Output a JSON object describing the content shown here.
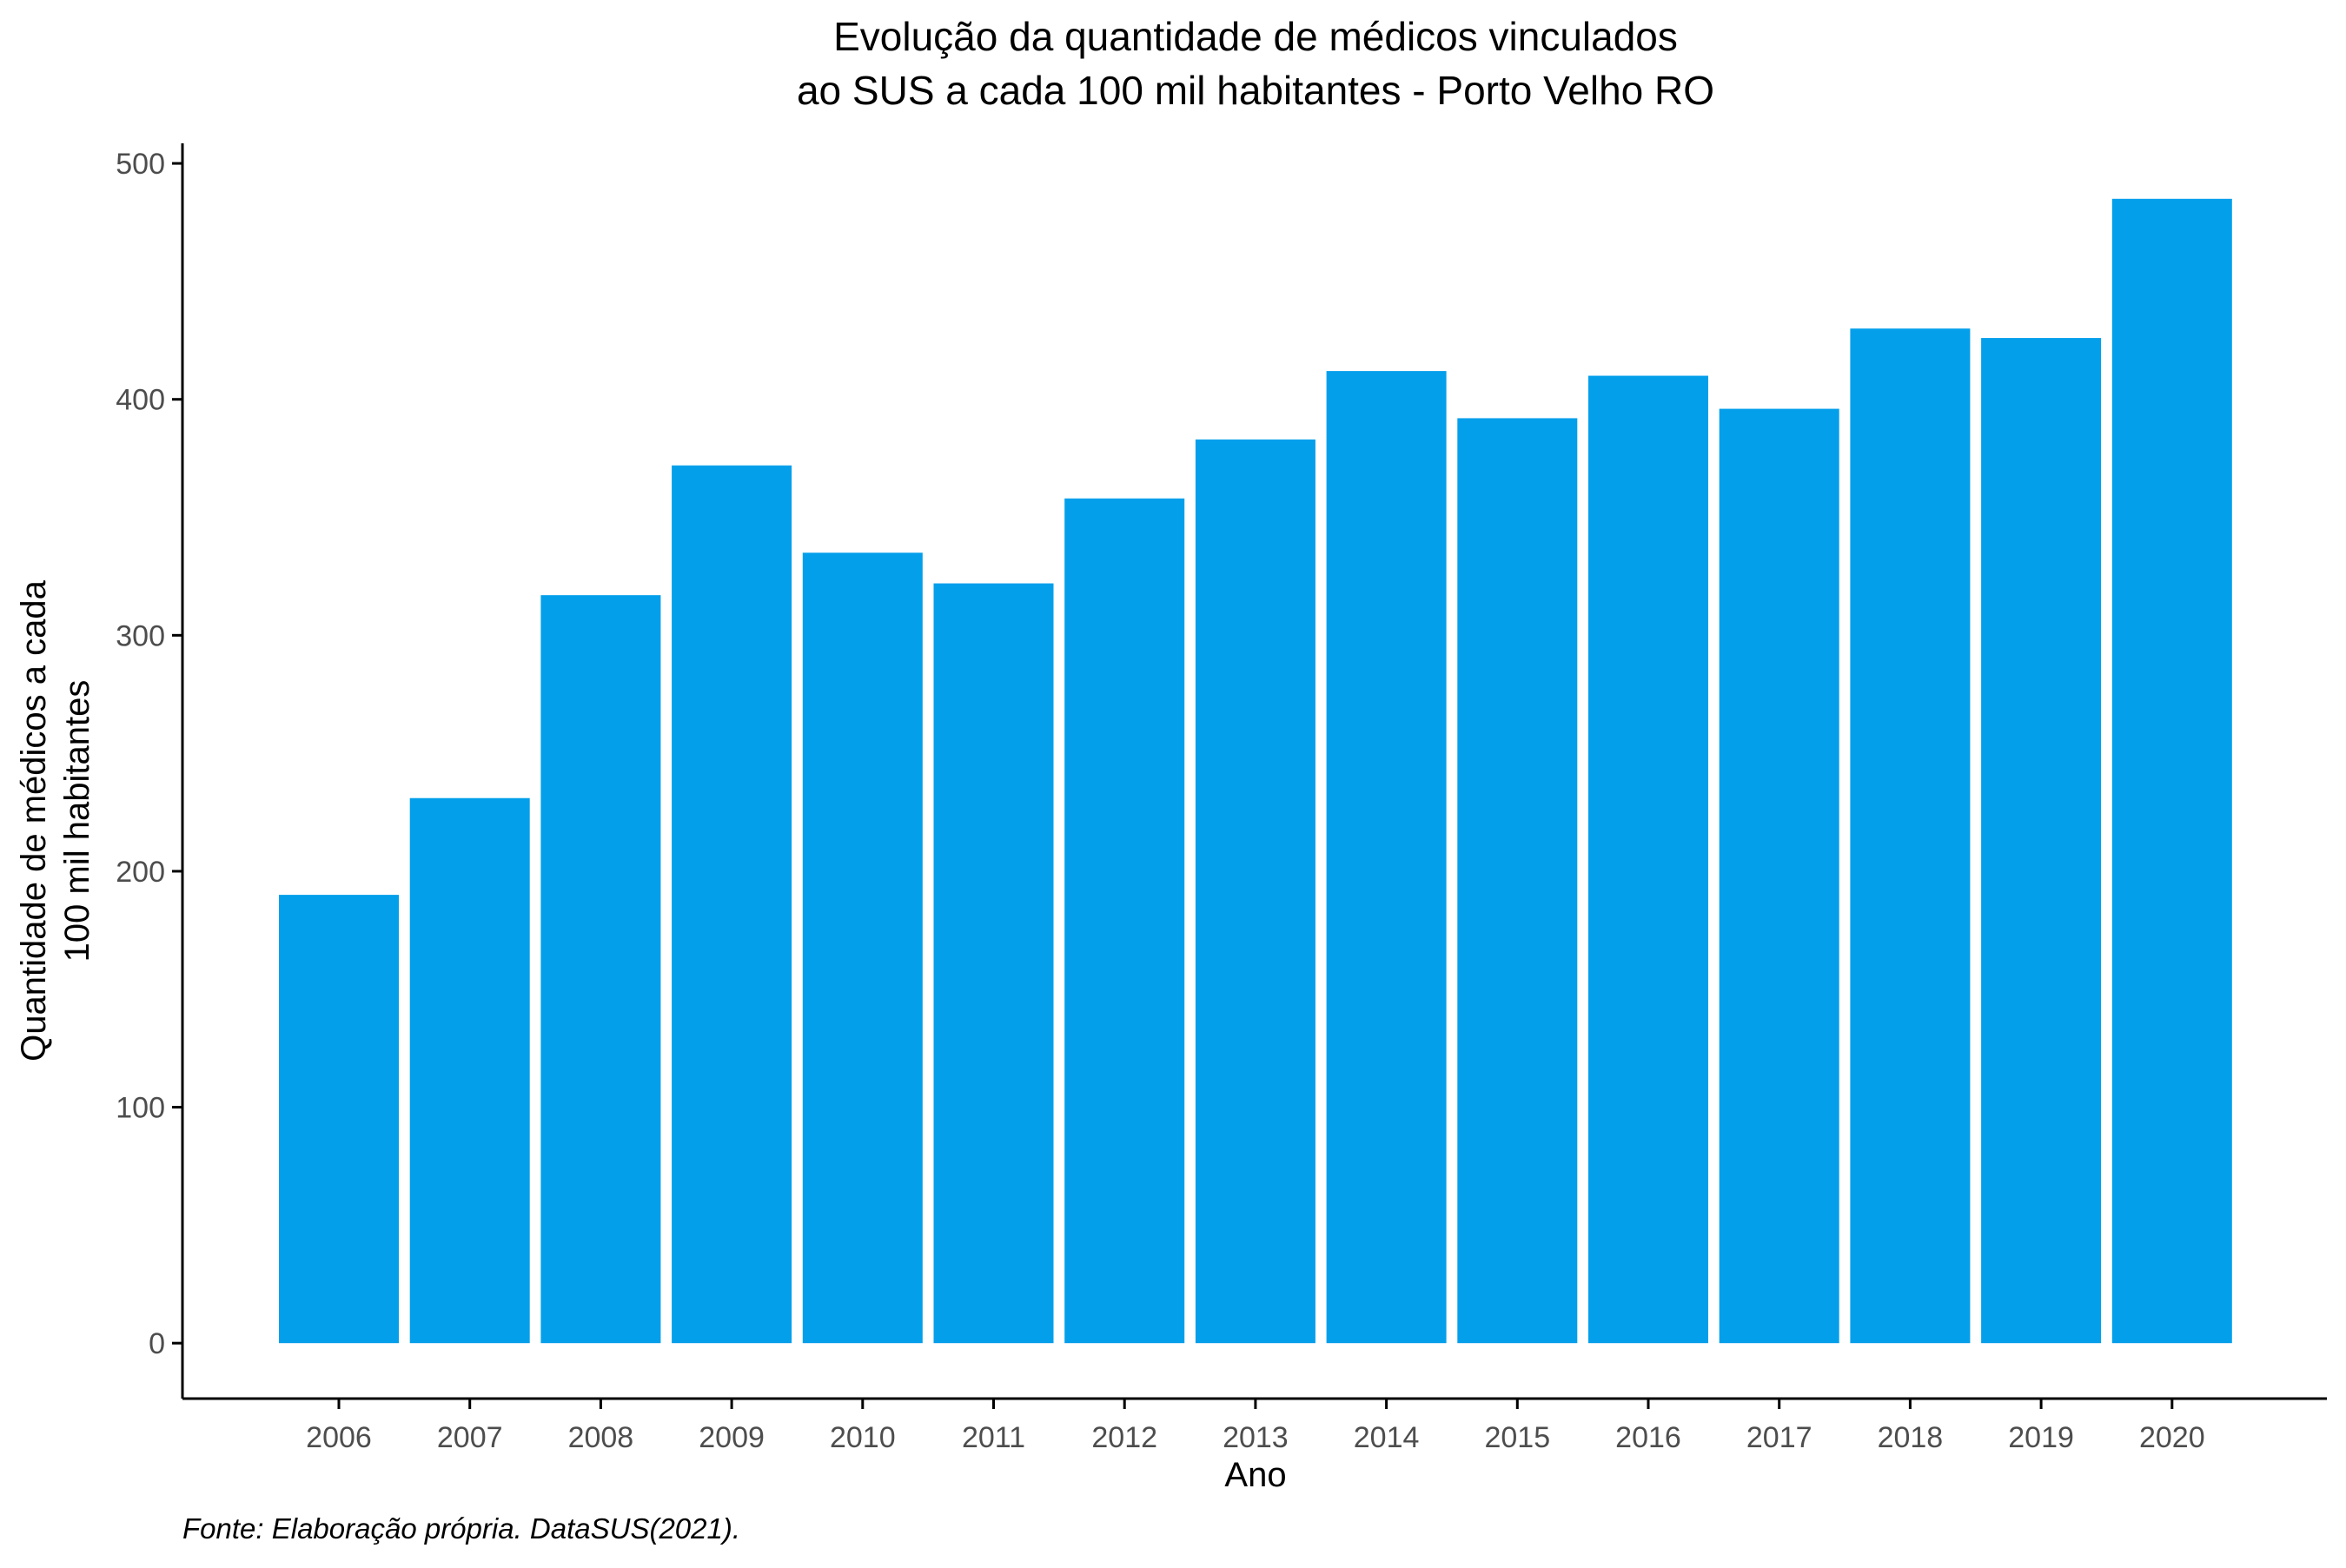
{
  "chart_data": {
    "type": "bar",
    "title": [
      "Evolução da quantidade de médicos vinculados",
      "ao SUS a cada 100 mil habitantes - Porto Velho RO"
    ],
    "xlabel": "Ano",
    "ylabel": [
      "Quantidade de médicos a cada",
      "100 mil habitantes"
    ],
    "caption": "Fonte: Elaboração própria. DataSUS(2021).",
    "categories": [
      "2006",
      "2007",
      "2008",
      "2009",
      "2010",
      "2011",
      "2012",
      "2013",
      "2014",
      "2015",
      "2016",
      "2017",
      "2018",
      "2019",
      "2020"
    ],
    "values": [
      190,
      231,
      317,
      372,
      335,
      322,
      358,
      383,
      412,
      392,
      410,
      396,
      430,
      426,
      485
    ],
    "ylim": [
      -23.5,
      508.5
    ],
    "yticks": [
      0,
      100,
      200,
      300,
      400,
      500
    ],
    "bar_color": "#039FEB",
    "grid": false,
    "legend": "none"
  }
}
